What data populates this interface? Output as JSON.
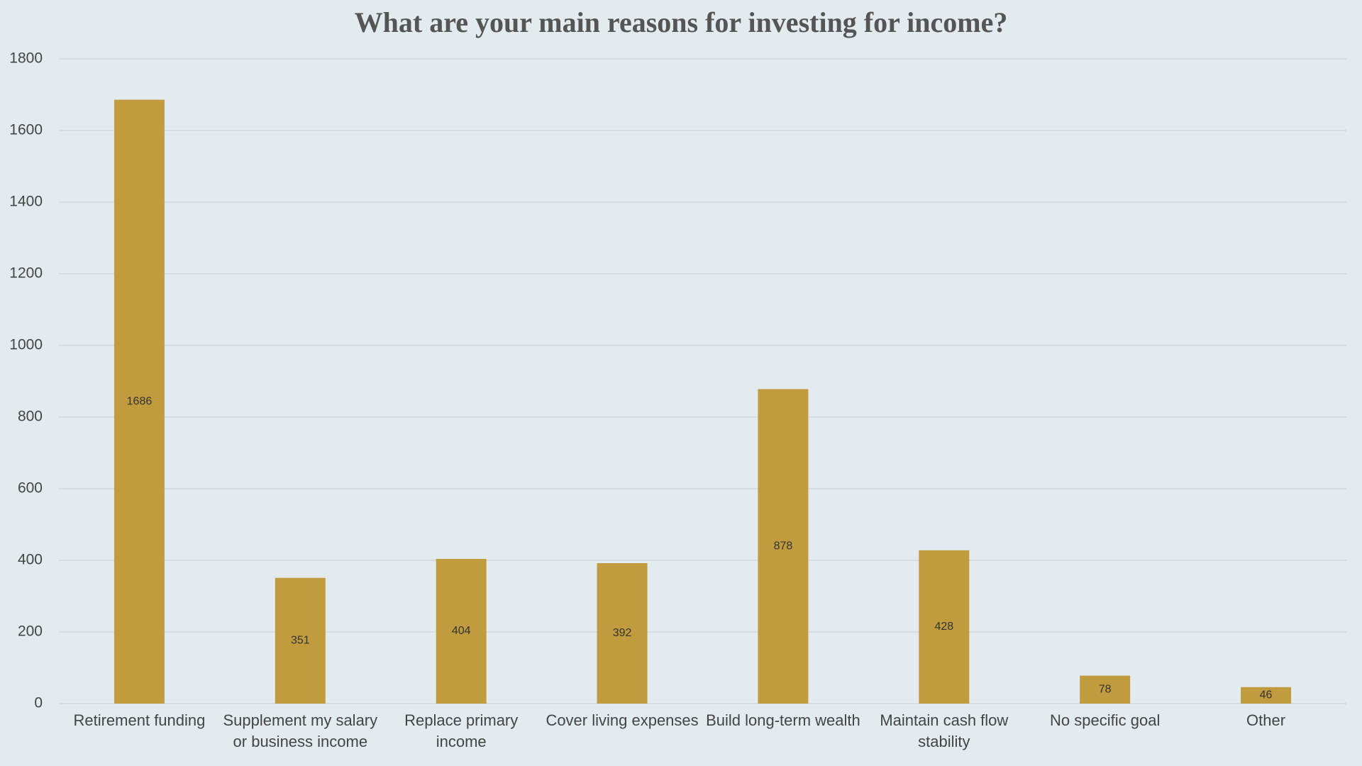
{
  "chart_data": {
    "type": "bar",
    "title": "What are your main reasons for investing for income?",
    "categories": [
      "Retirement funding",
      "Supplement my salary or business income",
      "Replace primary income",
      "Cover living expenses",
      "Build long-term wealth",
      "Maintain cash flow stability",
      "No specific goal",
      "Other"
    ],
    "values": [
      1686,
      351,
      404,
      392,
      878,
      428,
      78,
      46
    ],
    "color": "#c09c3e",
    "ylim": [
      0,
      1800
    ],
    "yticks": [
      0,
      200,
      400,
      600,
      800,
      1000,
      1200,
      1400,
      1600,
      1800
    ],
    "grid": true
  }
}
